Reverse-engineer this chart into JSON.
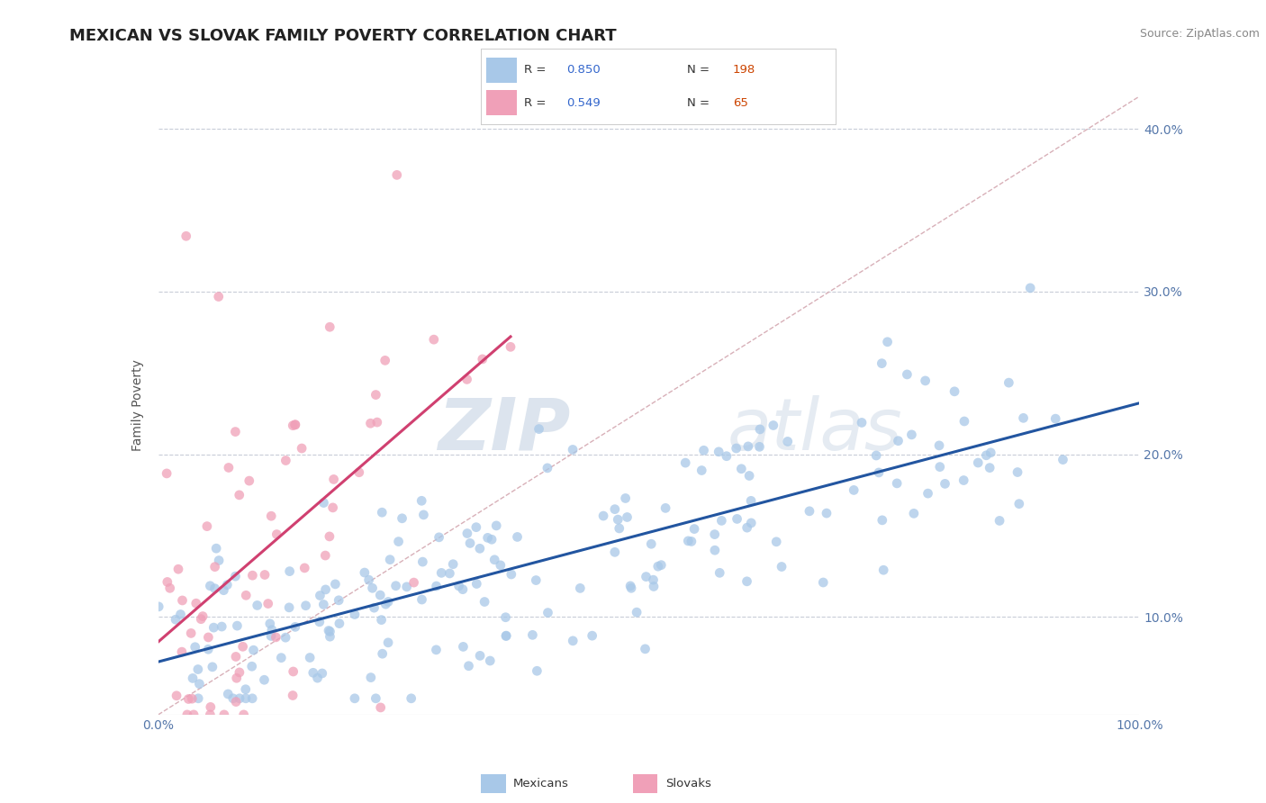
{
  "title": "MEXICAN VS SLOVAK FAMILY POVERTY CORRELATION CHART",
  "source": "Source: ZipAtlas.com",
  "ylabel": "Family Poverty",
  "mexican_R": 0.85,
  "mexican_N": 198,
  "slovak_R": 0.549,
  "slovak_N": 65,
  "mexican_color": "#a8c8e8",
  "mexican_color_line": "#2255a0",
  "slovak_color": "#f0a0b8",
  "slovak_color_line": "#d04070",
  "diagonal_color": "#d8b0b8",
  "xlim": [
    0.0,
    1.0
  ],
  "ylim": [
    0.04,
    0.42
  ],
  "y_ticks": [
    0.1,
    0.2,
    0.3,
    0.4
  ],
  "background_color": "#ffffff",
  "grid_color": "#c8ccd8",
  "legend_R_color": "#3366cc",
  "legend_N_color": "#cc4400",
  "seed": 99
}
